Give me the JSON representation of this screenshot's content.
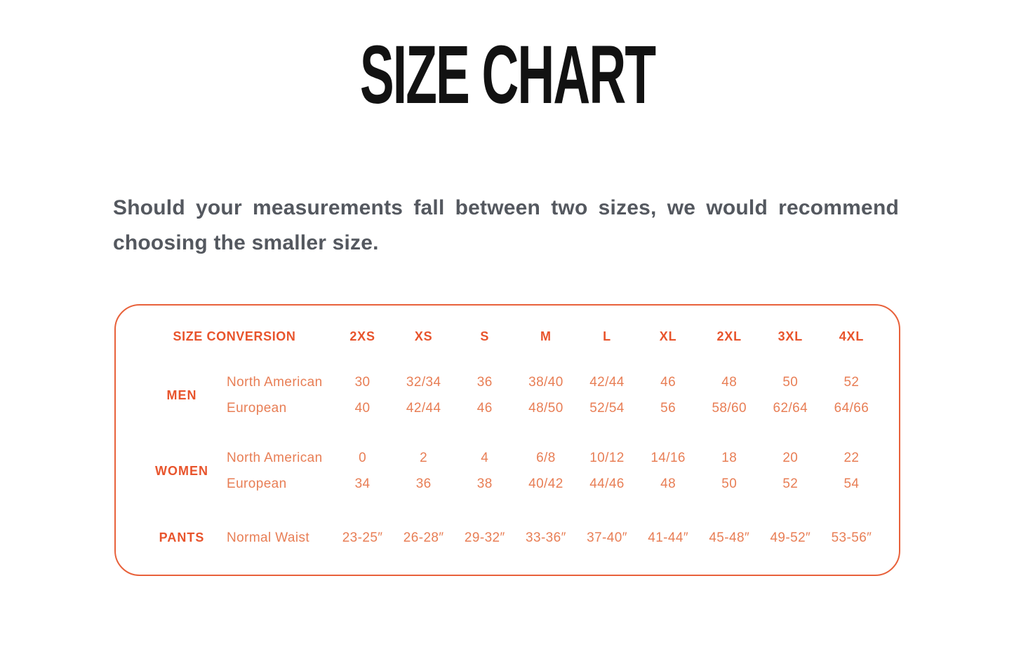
{
  "page": {
    "title": "SIZE CHART"
  },
  "intro": {
    "text": "Should your measurements fall between two sizes, we would recommend choosing the smaller size."
  },
  "colors": {
    "accent_bold": "#e8542c",
    "accent_light": "#e87e55",
    "card_border": "#e8613a",
    "title_text": "#121212",
    "body_text": "#54585f"
  },
  "table": {
    "header_label": "SIZE CONVERSION",
    "size_columns": [
      "2XS",
      "XS",
      "S",
      "M",
      "L",
      "XL",
      "2XL",
      "3XL",
      "4XL"
    ],
    "groups": [
      {
        "category": "MEN",
        "rows": [
          {
            "region": "North American",
            "values": [
              "30",
              "32/34",
              "36",
              "38/40",
              "42/44",
              "46",
              "48",
              "50",
              "52"
            ]
          },
          {
            "region": "European",
            "values": [
              "40",
              "42/44",
              "46",
              "48/50",
              "52/54",
              "56",
              "58/60",
              "62/64",
              "64/66"
            ]
          }
        ]
      },
      {
        "category": "WOMEN",
        "rows": [
          {
            "region": "North American",
            "values": [
              "0",
              "2",
              "4",
              "6/8",
              "10/12",
              "14/16",
              "18",
              "20",
              "22"
            ]
          },
          {
            "region": "European",
            "values": [
              "34",
              "36",
              "38",
              "40/42",
              "44/46",
              "48",
              "50",
              "52",
              "54"
            ]
          }
        ]
      },
      {
        "category": "PANTS",
        "rows": [
          {
            "region": "Normal Waist",
            "values": [
              "23-25″",
              "26-28″",
              "29-32″",
              "33-36″",
              "37-40″",
              "41-44″",
              "45-48″",
              "49-52″",
              "53-56″"
            ]
          }
        ]
      }
    ]
  }
}
